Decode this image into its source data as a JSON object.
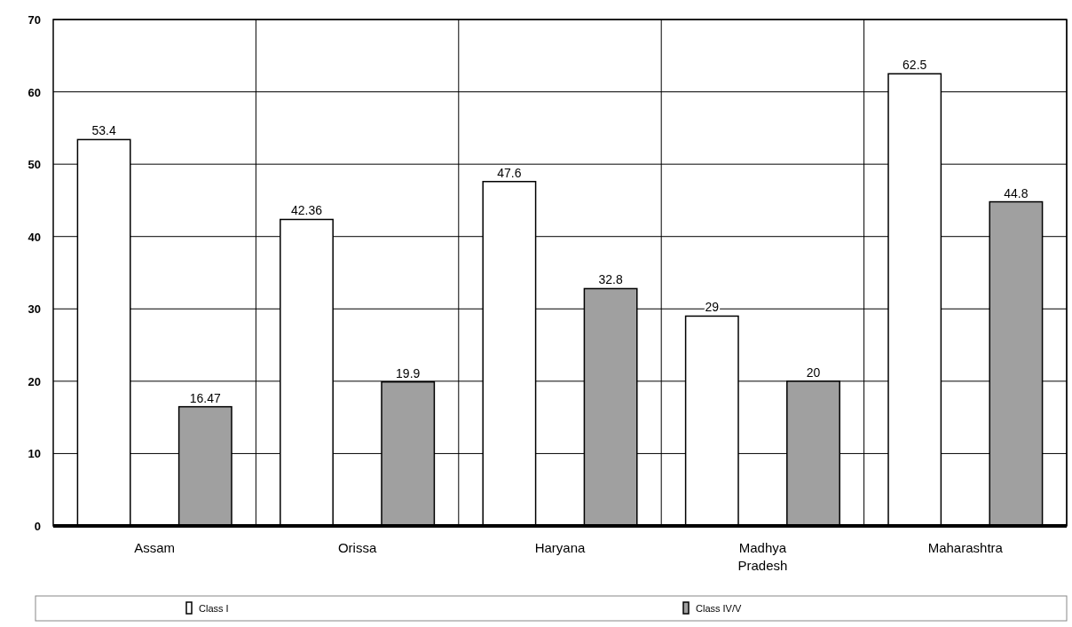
{
  "chart_data": {
    "type": "bar",
    "categories": [
      "Assam",
      "Orissa",
      "Haryana",
      "Madhya Pradesh",
      "Maharashtra"
    ],
    "series": [
      {
        "name": "Class I",
        "color": "#ffffff",
        "values": [
          53.4,
          42.36,
          47.6,
          29,
          62.5
        ]
      },
      {
        "name": "Class IV/V",
        "color": "#a0a0a0",
        "values": [
          16.47,
          19.9,
          32.8,
          20,
          44.8
        ]
      }
    ],
    "ylim": [
      0,
      70
    ],
    "yticks": [
      0,
      10,
      20,
      30,
      40,
      50,
      60,
      70
    ],
    "grid": true,
    "legend": "bottom",
    "data_labels": true
  }
}
